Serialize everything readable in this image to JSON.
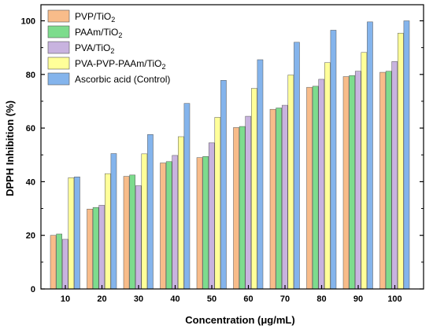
{
  "chart_data": {
    "type": "bar",
    "xlabel": "Concentration (μg/mL)",
    "ylabel": "DPPH Inhibition (%)",
    "ylim": [
      0,
      106
    ],
    "yticks": [
      0,
      20,
      40,
      60,
      80,
      100
    ],
    "grid": false,
    "legend_position": "top-left",
    "categories": [
      "10",
      "20",
      "30",
      "40",
      "50",
      "60",
      "70",
      "80",
      "90",
      "100"
    ],
    "series": [
      {
        "name": "PVP/TiO",
        "name_sub": "2",
        "color": "#f8bc8a",
        "values": [
          20,
          29.8,
          42,
          47,
          49,
          60.2,
          67,
          75.2,
          79.2,
          80.8
        ]
      },
      {
        "name": "PAAm/TiO",
        "name_sub": "2",
        "color": "#7ddc8d",
        "values": [
          20.5,
          30.4,
          42.5,
          47.5,
          49.4,
          60.6,
          67.5,
          75.6,
          79.6,
          81.2
        ]
      },
      {
        "name": "PVA/TiO",
        "name_sub": "2",
        "color": "#c8b3df",
        "values": [
          18.5,
          31.2,
          38.5,
          49.8,
          54.5,
          64.4,
          68.5,
          78.2,
          81.2,
          84.8
        ]
      },
      {
        "name": "PVA-PVP-PAAm/TiO",
        "name_sub": "2",
        "color": "#ffff99",
        "values": [
          41.5,
          43,
          50.4,
          56.8,
          64,
          74.8,
          79.8,
          84.4,
          88.2,
          95.4
        ]
      },
      {
        "name": "Ascorbic acid (Control)",
        "name_sub": "",
        "color": "#84b4ec",
        "values": [
          41.8,
          50.5,
          57.6,
          69.2,
          77.8,
          85.5,
          92,
          96.5,
          99.6,
          100
        ]
      }
    ]
  }
}
